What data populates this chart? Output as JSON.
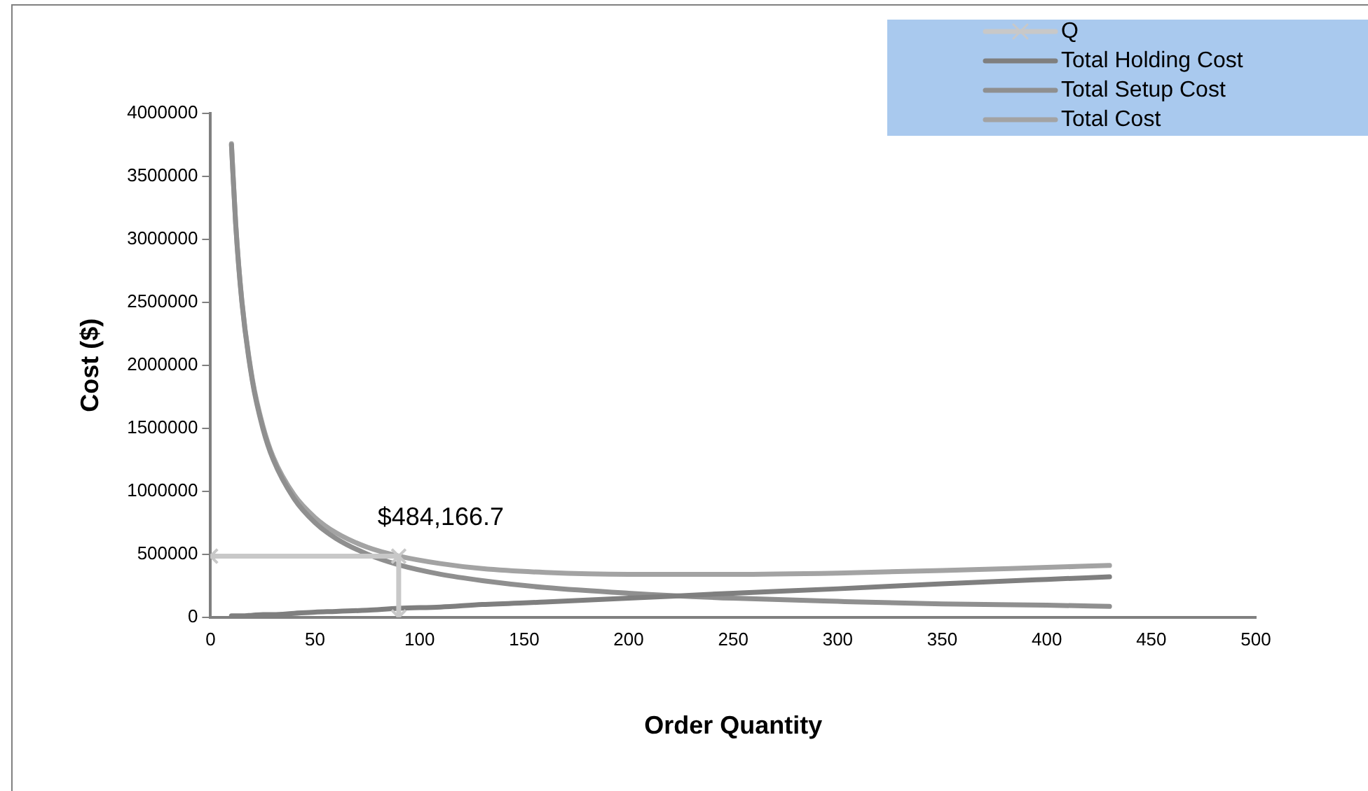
{
  "chart_data": {
    "type": "line",
    "xlabel": "Order Quantity",
    "ylabel": "Cost ($)",
    "xlim": [
      0,
      500
    ],
    "xticks": [
      0,
      50,
      100,
      150,
      200,
      250,
      300,
      350,
      400,
      450,
      500
    ],
    "ylim": [
      0,
      4000000
    ],
    "yticks": [
      0,
      500000,
      1000000,
      1500000,
      2000000,
      2500000,
      3000000,
      3500000,
      4000000
    ],
    "grid": false,
    "legend": "top right",
    "annotations": [
      {
        "text": "$484,166.7",
        "x": 90,
        "y": 484166.7
      }
    ],
    "series": [
      {
        "name": "Q",
        "color": "#c8c8c8",
        "marker": "cross",
        "x": [
          0,
          90,
          90
        ],
        "values": [
          484166.7,
          484166.7,
          0
        ]
      },
      {
        "name": "Total Holding Cost",
        "color": "#7f7f7f",
        "marker": "none",
        "x": [
          10,
          12,
          15,
          20,
          25,
          30,
          40,
          50,
          60,
          75,
          90,
          110,
          130,
          160,
          200,
          250,
          300,
          350,
          400,
          430
        ],
        "values": [
          10000,
          10000,
          10000,
          15000,
          20000,
          20000,
          30000,
          40000,
          45000,
          55000,
          70000,
          80000,
          100000,
          120000,
          150000,
          190000,
          225000,
          265000,
          300000,
          320000
        ]
      },
      {
        "name": "Total Setup Cost",
        "color": "#8f8f8f",
        "marker": "none",
        "x": [
          10,
          12,
          15,
          20,
          25,
          30,
          40,
          50,
          60,
          75,
          90,
          110,
          130,
          160,
          200,
          250,
          300,
          350,
          400,
          430
        ],
        "values": [
          3750000,
          3125000,
          2500000,
          1875000,
          1500000,
          1250000,
          940000,
          750000,
          625000,
          500000,
          415000,
          340000,
          290000,
          235000,
          190000,
          150000,
          125000,
          105000,
          95000,
          85000
        ]
      },
      {
        "name": "Total Cost",
        "color": "#a3a3a3",
        "marker": "none",
        "x": [
          10,
          12,
          15,
          20,
          25,
          30,
          40,
          50,
          60,
          75,
          90,
          110,
          130,
          160,
          200,
          250,
          300,
          350,
          400,
          430
        ],
        "values": [
          3760000,
          3135000,
          2510000,
          1890000,
          1520000,
          1270000,
          970000,
          790000,
          670000,
          555000,
          485000,
          425000,
          385000,
          355000,
          340000,
          340000,
          350000,
          370000,
          395000,
          410000
        ]
      }
    ]
  }
}
